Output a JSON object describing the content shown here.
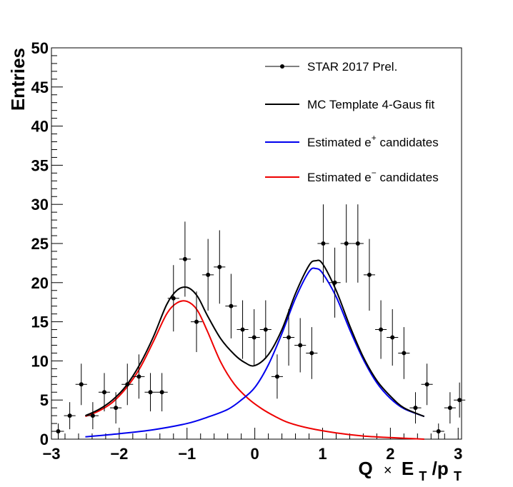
{
  "chart_data": {
    "type": "scatter",
    "xlabel": {
      "base": "Q",
      "times": "×",
      "e": "E",
      "e_sub": "T",
      "slash": "/p",
      "p_sub": "T"
    },
    "ylabel": "Entries",
    "xlim": [
      -3,
      3.05
    ],
    "ylim": [
      0,
      50
    ],
    "x_ticks": [
      -3,
      -2,
      -1,
      0,
      1,
      2,
      3
    ],
    "x_tick_labels": [
      "−3",
      "−2",
      "−1",
      "0",
      "1",
      "2",
      "3"
    ],
    "y_ticks": [
      0,
      5,
      10,
      15,
      20,
      25,
      30,
      35,
      40,
      45,
      50
    ],
    "y_tick_labels": [
      "0",
      "5",
      "10",
      "15",
      "20",
      "25",
      "30",
      "35",
      "40",
      "45",
      "50"
    ],
    "grid": false,
    "legend_position": "top-right",
    "bin_half_width": 0.085,
    "data_series": {
      "name": "STAR 2017 Prel.",
      "color": "#000000",
      "x": [
        -2.9,
        -2.73,
        -2.56,
        -2.39,
        -2.22,
        -2.05,
        -1.88,
        -1.71,
        -1.54,
        -1.37,
        -1.2,
        -1.03,
        -0.86,
        -0.69,
        -0.52,
        -0.35,
        -0.18,
        -0.01,
        0.16,
        0.33,
        0.5,
        0.67,
        0.84,
        1.01,
        1.18,
        1.35,
        1.52,
        1.69,
        1.86,
        2.03,
        2.2,
        2.37,
        2.54,
        2.71,
        2.88,
        3.02
      ],
      "y": [
        1,
        3,
        7,
        3,
        6,
        4,
        7,
        8,
        6,
        6,
        18,
        23,
        15,
        21,
        22,
        17,
        14,
        13,
        14,
        8,
        13,
        12,
        11,
        25,
        20,
        25,
        25,
        21,
        14,
        13,
        11,
        4,
        7,
        1,
        4,
        5
      ]
    },
    "fit_total": {
      "name": "MC Template 4-Gaus fit",
      "color": "#000000",
      "x": [
        -2.5,
        -2.3,
        -2.1,
        -1.9,
        -1.7,
        -1.5,
        -1.3,
        -1.15,
        -1.0,
        -0.85,
        -0.7,
        -0.5,
        -0.3,
        -0.15,
        0.0,
        0.2,
        0.4,
        0.6,
        0.8,
        0.9,
        1.0,
        1.2,
        1.4,
        1.6,
        1.8,
        2.0,
        2.2,
        2.5
      ],
      "y": [
        3.0,
        3.8,
        5.0,
        6.8,
        9.5,
        13.0,
        17.2,
        19.0,
        19.4,
        18.3,
        15.8,
        12.8,
        10.8,
        9.8,
        9.4,
        10.8,
        14.0,
        18.6,
        22.2,
        22.8,
        22.4,
        19.0,
        14.5,
        10.5,
        7.5,
        5.5,
        4.0,
        2.9
      ]
    },
    "fit_positive": {
      "name": "Estimated e+ candidates",
      "label_base": "Estimated e",
      "label_sup": "+",
      "label_rest": " candidates",
      "color": "#0000ee",
      "x": [
        -2.5,
        -2.0,
        -1.5,
        -1.0,
        -0.7,
        -0.4,
        -0.2,
        0.0,
        0.2,
        0.4,
        0.6,
        0.8,
        0.9,
        1.0,
        1.2,
        1.4,
        1.6,
        1.8,
        2.0,
        2.2,
        2.5
      ],
      "y": [
        0.3,
        0.7,
        1.2,
        2.0,
        2.8,
        3.8,
        5.0,
        6.6,
        9.5,
        13.5,
        18.0,
        21.4,
        21.8,
        21.2,
        18.2,
        14.0,
        10.2,
        7.2,
        5.2,
        3.9,
        2.9
      ]
    },
    "fit_negative": {
      "name": "Estimated e- candidates",
      "label_base": "Estimated e",
      "label_sup": "−",
      "label_rest": " candidates",
      "color": "#ee0000",
      "x": [
        -2.5,
        -2.3,
        -2.1,
        -1.9,
        -1.7,
        -1.5,
        -1.3,
        -1.15,
        -1.0,
        -0.85,
        -0.7,
        -0.5,
        -0.3,
        -0.1,
        0.1,
        0.3,
        0.5,
        0.8,
        1.2,
        1.6,
        2.0,
        2.5
      ],
      "y": [
        2.9,
        3.6,
        4.7,
        6.5,
        9.0,
        12.4,
        16.0,
        17.4,
        17.6,
        16.5,
        13.8,
        9.8,
        7.0,
        5.2,
        3.9,
        2.9,
        2.1,
        1.4,
        0.8,
        0.4,
        0.2,
        0.0
      ]
    }
  }
}
